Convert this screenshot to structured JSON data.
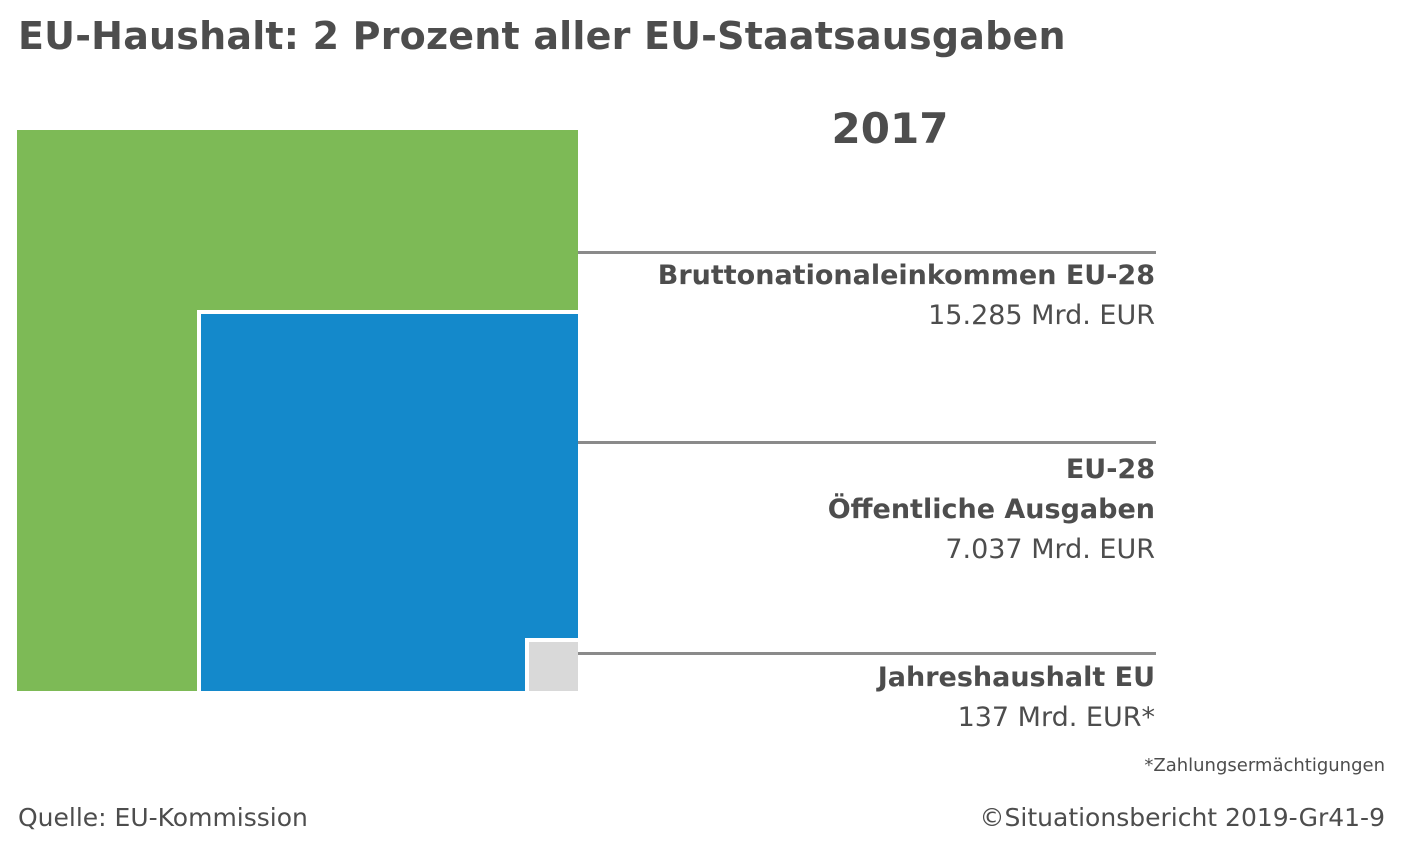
{
  "title": "EU-Haushalt: 2 Prozent aller EU-Staatsausgaben",
  "year": "2017",
  "colors": {
    "gni": "#7dba56",
    "public_spending": "#1489cb",
    "eu_budget": "#d9d9d9",
    "rule": "#8a8a8a"
  },
  "chart_data": {
    "type": "nested-squares",
    "unit": "Mrd. EUR",
    "series": [
      {
        "name_lines": [
          "Bruttonationaleinkommen EU-28"
        ],
        "value": 15285,
        "value_label": "15.285 Mrd. EUR"
      },
      {
        "name_lines": [
          "EU-28",
          "Öffentliche Ausgaben"
        ],
        "value": 7037,
        "value_label": "7.037 Mrd. EUR"
      },
      {
        "name_lines": [
          "Jahreshaushalt EU"
        ],
        "value": 137,
        "value_label": "137 Mrd. EUR*"
      }
    ]
  },
  "footnote": "*Zahlungsermächtigungen",
  "source": "Quelle: EU-Kommission",
  "credit": "©Situationsbericht 2019-Gr41-9"
}
